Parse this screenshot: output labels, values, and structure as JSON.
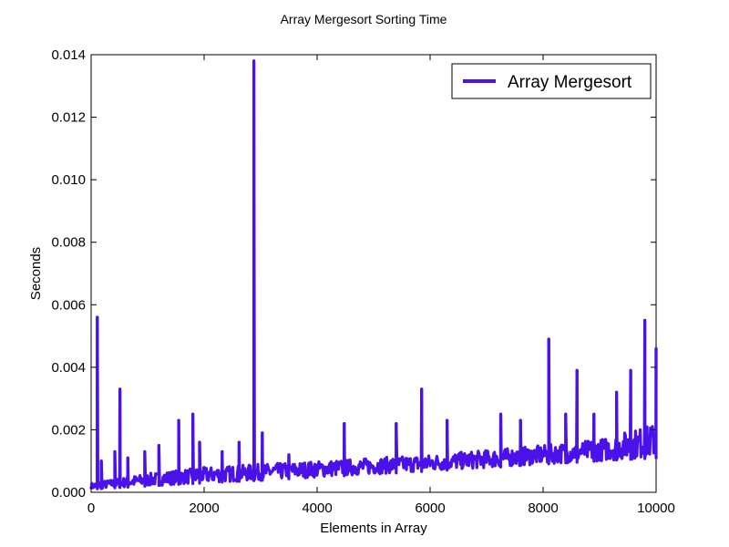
{
  "chart_data": {
    "type": "line",
    "title": "Array Mergesort Sorting Time",
    "xlabel": "Elements in Array",
    "ylabel": "Seconds",
    "xlim": [
      0,
      10000
    ],
    "ylim": [
      0,
      0.014
    ],
    "x_ticks": [
      0,
      2000,
      4000,
      6000,
      8000,
      10000
    ],
    "x_tick_labels": [
      "0",
      "2000",
      "4000",
      "6000",
      "8000",
      "10000"
    ],
    "y_ticks": [
      0,
      0.002,
      0.004,
      0.006,
      0.008,
      0.01,
      0.012,
      0.014
    ],
    "y_tick_labels": [
      "0.000",
      "0.002",
      "0.004",
      "0.006",
      "0.008",
      "0.010",
      "0.012",
      "0.014"
    ],
    "grid": false,
    "legend": {
      "placement": "top-right",
      "entries": [
        "Array Mergesort"
      ]
    },
    "series": [
      {
        "name": "Array Mergesort",
        "color": "#4a12e8",
        "baseline": {
          "x": [
            0,
            1000,
            2000,
            3000,
            4000,
            5000,
            6000,
            7000,
            8000,
            9000,
            10000
          ],
          "y": [
            0.0001,
            0.0002,
            0.0003,
            0.00038,
            0.00048,
            0.00058,
            0.00068,
            0.00078,
            0.0009,
            0.001,
            0.0011
          ]
        },
        "upper_envelope": {
          "x": [
            0,
            1000,
            2000,
            3000,
            4000,
            5000,
            6000,
            7000,
            8000,
            9000,
            10000
          ],
          "y": [
            0.0003,
            0.0006,
            0.0008,
            0.0009,
            0.001,
            0.0011,
            0.0012,
            0.00135,
            0.0015,
            0.0017,
            0.0022
          ]
        },
        "spikes": [
          {
            "x": 110,
            "y": 0.0056
          },
          {
            "x": 180,
            "y": 0.001
          },
          {
            "x": 420,
            "y": 0.0013
          },
          {
            "x": 510,
            "y": 0.0033
          },
          {
            "x": 650,
            "y": 0.0011
          },
          {
            "x": 950,
            "y": 0.0013
          },
          {
            "x": 1200,
            "y": 0.0015
          },
          {
            "x": 1550,
            "y": 0.0023
          },
          {
            "x": 1800,
            "y": 0.0025
          },
          {
            "x": 1920,
            "y": 0.0016
          },
          {
            "x": 2320,
            "y": 0.0013
          },
          {
            "x": 2620,
            "y": 0.0016
          },
          {
            "x": 2880,
            "y": 0.0138
          },
          {
            "x": 3030,
            "y": 0.0019
          },
          {
            "x": 3500,
            "y": 0.0012
          },
          {
            "x": 4480,
            "y": 0.0022
          },
          {
            "x": 5400,
            "y": 0.0022
          },
          {
            "x": 5850,
            "y": 0.0033
          },
          {
            "x": 6300,
            "y": 0.0023
          },
          {
            "x": 7250,
            "y": 0.0025
          },
          {
            "x": 7600,
            "y": 0.0023
          },
          {
            "x": 8100,
            "y": 0.0049
          },
          {
            "x": 8400,
            "y": 0.0025
          },
          {
            "x": 8600,
            "y": 0.0039
          },
          {
            "x": 8900,
            "y": 0.0025
          },
          {
            "x": 9300,
            "y": 0.0032
          },
          {
            "x": 9550,
            "y": 0.0039
          },
          {
            "x": 9800,
            "y": 0.0055
          },
          {
            "x": 10000,
            "y": 0.0046
          }
        ]
      }
    ]
  }
}
